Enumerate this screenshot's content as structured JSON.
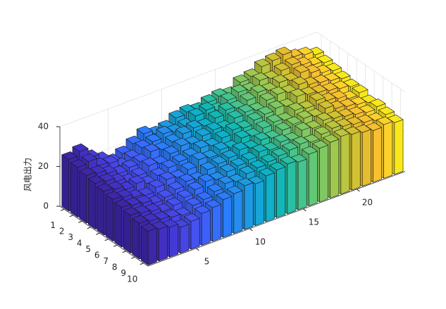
{
  "chart_data": {
    "type": "bar3",
    "zlabel": "风电出力",
    "x": [
      1,
      2,
      3,
      4,
      5,
      6,
      7,
      8,
      9,
      10,
      11,
      12,
      13,
      14,
      15,
      16,
      17,
      18,
      19,
      20,
      21,
      22,
      23,
      24
    ],
    "y": [
      1,
      2,
      3,
      4,
      5,
      6,
      7,
      8,
      9,
      10
    ],
    "xlim": [
      0.5,
      24.5
    ],
    "ylim": [
      0.5,
      10.5
    ],
    "zlim": [
      0,
      40
    ],
    "xticks": [
      5,
      10,
      15,
      20
    ],
    "yticks": [
      1,
      2,
      3,
      4,
      5,
      6,
      7,
      8,
      9,
      10
    ],
    "zticks": [
      0,
      20,
      40
    ],
    "grid": true,
    "colors": [
      "#3e26a8",
      "#4230c2",
      "#4539d6",
      "#4745e6",
      "#4651f1",
      "#3f5ffa",
      "#356efd",
      "#2a7dfc",
      "#258cf0",
      "#1e99e4",
      "#17a5d8",
      "#0fb0c9",
      "#13b8b6",
      "#29bfa3",
      "#45c48d",
      "#62c777",
      "#80c962",
      "#9dc94f",
      "#b9c63f",
      "#d2c131",
      "#e6bd2e",
      "#f6c030",
      "#fcd22a",
      "#f8e81b"
    ],
    "values": [
      [
        26,
        28,
        23,
        20,
        17,
        19,
        22,
        25,
        23,
        24,
        27,
        28,
        27,
        29,
        30,
        29,
        33,
        34,
        37,
        38,
        39,
        36,
        35,
        33
      ],
      [
        25,
        26,
        22,
        21,
        18,
        20,
        23,
        24,
        26,
        25,
        26,
        29,
        30,
        28,
        31,
        33,
        32,
        35,
        34,
        36,
        37,
        35,
        33,
        32
      ],
      [
        24,
        23,
        21,
        19,
        20,
        21,
        24,
        23,
        25,
        27,
        28,
        27,
        29,
        31,
        30,
        32,
        34,
        33,
        35,
        34,
        36,
        34,
        32,
        31
      ],
      [
        23,
        22,
        20,
        18,
        19,
        22,
        21,
        24,
        26,
        25,
        27,
        28,
        27,
        30,
        31,
        30,
        33,
        34,
        33,
        35,
        33,
        32,
        31,
        30
      ],
      [
        22,
        21,
        19,
        20,
        18,
        20,
        22,
        23,
        24,
        26,
        25,
        27,
        29,
        28,
        30,
        31,
        32,
        31,
        34,
        33,
        32,
        31,
        30,
        29
      ],
      [
        21,
        20,
        18,
        17,
        19,
        21,
        20,
        22,
        25,
        24,
        26,
        25,
        28,
        27,
        29,
        30,
        29,
        32,
        31,
        33,
        31,
        30,
        28,
        29
      ],
      [
        20,
        19,
        18,
        16,
        17,
        19,
        21,
        20,
        23,
        24,
        25,
        27,
        26,
        28,
        27,
        29,
        30,
        31,
        30,
        32,
        30,
        29,
        28,
        27
      ],
      [
        19,
        18,
        17,
        15,
        16,
        18,
        20,
        22,
        21,
        23,
        24,
        25,
        27,
        26,
        28,
        27,
        30,
        29,
        31,
        30,
        29,
        28,
        27,
        28
      ],
      [
        18,
        17,
        16,
        15,
        14,
        17,
        18,
        20,
        22,
        21,
        23,
        24,
        25,
        26,
        27,
        28,
        27,
        29,
        30,
        29,
        28,
        27,
        26,
        27
      ],
      [
        17,
        16,
        15,
        13,
        14,
        16,
        17,
        19,
        20,
        22,
        21,
        23,
        24,
        25,
        24,
        26,
        27,
        28,
        29,
        28,
        27,
        26,
        27,
        26
      ]
    ]
  }
}
